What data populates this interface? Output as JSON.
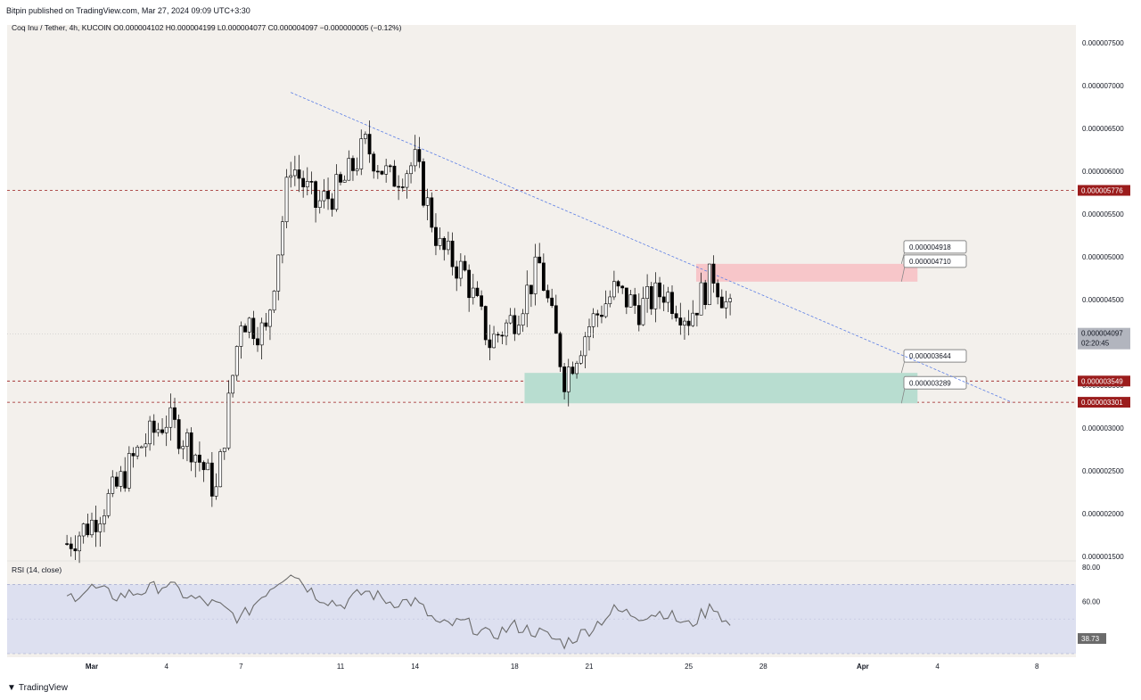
{
  "header": {
    "published_line": "Bitpin published on TradingView.com, Mar 27, 2024 09:09 UTC+3:30"
  },
  "symbol_line": "Coq Inu / Tether, 4h, KUCOIN  O0.000004102  H0.000004199  L0.000004077  C0.000004097  −0.000000005 (−0.12%)",
  "rsi_line": "RSI (14, close)",
  "rsi_value": "38.73",
  "footer": {
    "brand": "TradingView",
    "logo": "TV"
  },
  "colors": {
    "background": "#f3f0ec",
    "bull_candle": "#ffffff",
    "bear_candle": "#000000",
    "resistance_zone": "#f7c6c9",
    "support_zone": "#b8ddd0",
    "level_line": "#9b1c1c",
    "trendline": "#5b7ee5",
    "rsi_band": "#dde0f0",
    "rsi_line": "#6b6b6b"
  },
  "chart_data": [
    {
      "type": "candlestick",
      "title": "Coq Inu / Tether, 4h, KUCOIN",
      "xlabel": "",
      "ylabel": "",
      "x_tick_labels": [
        "Mar",
        "4",
        "7",
        "11",
        "14",
        "18",
        "21",
        "25",
        "28",
        "Apr",
        "4",
        "8"
      ],
      "x_tick_days": [
        1,
        4,
        7,
        11,
        14,
        18,
        21,
        25,
        28,
        32,
        35,
        39
      ],
      "ylim": [
        1.5e-06,
        7.6e-06
      ],
      "y_tick_values": [
        "0.000007500",
        "0.000007000",
        "0.000006500",
        "0.000006000",
        "0.000005500",
        "0.000005000",
        "0.000004500",
        "0.000004000",
        "0.000003500",
        "0.000003000",
        "0.000002500",
        "0.000002000",
        "0.000001500"
      ],
      "y_ticks": [
        7.5e-06,
        7e-06,
        6.5e-06,
        6e-06,
        5.5e-06,
        5e-06,
        4.5e-06,
        4e-06,
        3.5e-06,
        3e-06,
        2.5e-06,
        2e-06,
        1.5e-06
      ],
      "horizontal_levels": [
        {
          "value": 5.776e-06,
          "label": "0.000005776"
        },
        {
          "value": 3.549e-06,
          "label": "0.000003549"
        },
        {
          "value": 3.301e-06,
          "label": "0.000003301"
        }
      ],
      "last_price": {
        "label": "0.000004097",
        "countdown": "02:20:45",
        "value": 4.097e-06
      },
      "zones": [
        {
          "name": "resistance",
          "top": 4.918e-06,
          "bottom": 4.71e-06,
          "top_label": "0.000004918",
          "bottom_label": "0.000004710",
          "from_day": 25.3,
          "to_day": 34.2
        },
        {
          "name": "support",
          "top": 3.644e-06,
          "bottom": 3.289e-06,
          "top_label": "0.000003644",
          "bottom_label": "0.000003289",
          "from_day": 18.4,
          "to_day": 34.2
        }
      ],
      "trendline": {
        "start": [
          9.0,
          6.92e-06
        ],
        "end": [
          38.0,
          3.3e-06
        ]
      },
      "close_path_days": [
        0,
        1,
        2,
        3,
        4,
        5,
        6,
        7,
        8,
        9,
        10,
        11,
        12,
        13,
        14,
        15,
        16,
        17,
        18,
        19,
        20,
        21,
        22,
        23,
        24,
        25,
        26,
        27
      ],
      "close_path_values": [
        1.65e-06,
        1.9e-06,
        2.3e-06,
        2.8e-06,
        3.1e-06,
        2.8e-06,
        2.25e-06,
        4.3e-06,
        4.1e-06,
        6.1e-06,
        5.6e-06,
        5.8e-06,
        6.3e-06,
        5.9e-06,
        6.1e-06,
        5.1e-06,
        4.8e-06,
        4e-06,
        4.3e-06,
        4.9e-06,
        3.6e-06,
        4.2e-06,
        4.6e-06,
        4.4e-06,
        4.6e-06,
        4.3e-06,
        4.8e-06,
        4.1e-06
      ]
    },
    {
      "type": "line",
      "title": "RSI (14, close)",
      "ylim": [
        30,
        82
      ],
      "y_tick_labels": [
        "80.00",
        "60.00"
      ],
      "y_ticks": [
        80,
        60
      ],
      "band": [
        30,
        70
      ],
      "midline": 50,
      "last_value": 38.73,
      "x_days": [
        0,
        1,
        2,
        3,
        4,
        5,
        6,
        7,
        8,
        9,
        10,
        11,
        12,
        13,
        14,
        15,
        16,
        17,
        18,
        19,
        20,
        21,
        22,
        23,
        24,
        25,
        26,
        27
      ],
      "values": [
        62,
        68,
        63,
        66,
        70,
        62,
        58,
        50,
        66,
        78,
        64,
        58,
        66,
        60,
        60,
        46,
        48,
        40,
        46,
        42,
        36,
        44,
        55,
        52,
        54,
        46,
        58,
        38.73
      ]
    }
  ]
}
